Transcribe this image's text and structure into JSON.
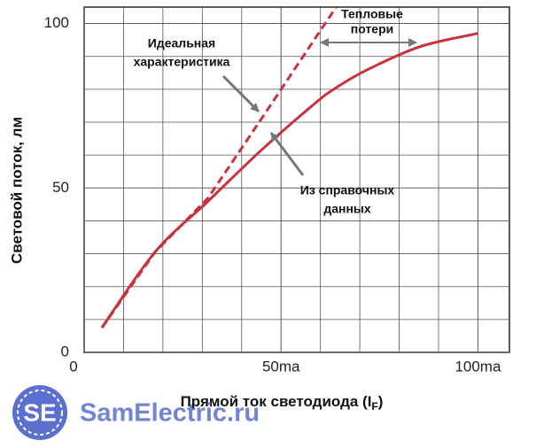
{
  "chart_data": {
    "type": "line",
    "x_label": {
      "text": "Прямой ток светодиода (I",
      "subscript": "F",
      "end": ")"
    },
    "y_label": "Световой поток, лм",
    "x": [
      4.5,
      18,
      31.5,
      45,
      58.4,
      64,
      72,
      85.4,
      100
    ],
    "series": [
      {
        "color": "#c8323c",
        "style": "solid",
        "values": [
          7.5,
          30.5,
          46,
          61.5,
          75.5,
          80.5,
          86,
          93,
          97
        ]
      },
      {
        "color": "#c8323c",
        "style": "dashed",
        "values": [
          7.5,
          30.5,
          47,
          71,
          95,
          105,
          null,
          null,
          null
        ]
      }
    ],
    "xlim": [
      0,
      108
    ],
    "xticks": [
      0,
      {
        "value": 50,
        "label": "50ma"
      },
      {
        "value": 100,
        "label": "100ma"
      }
    ],
    "ylim": [
      0,
      105
    ],
    "yticks": [
      0,
      50,
      100
    ],
    "grid": true,
    "annotations": [
      {
        "lines": [
          "Тепловые",
          "потери"
        ]
      },
      {
        "lines": [
          "Идеальная",
          "характеристика"
        ]
      },
      {
        "lines": [
          "Из справочных",
          "данных"
        ]
      }
    ]
  },
  "watermark": {
    "logo": "SE",
    "text": "SamElectric.ru"
  }
}
